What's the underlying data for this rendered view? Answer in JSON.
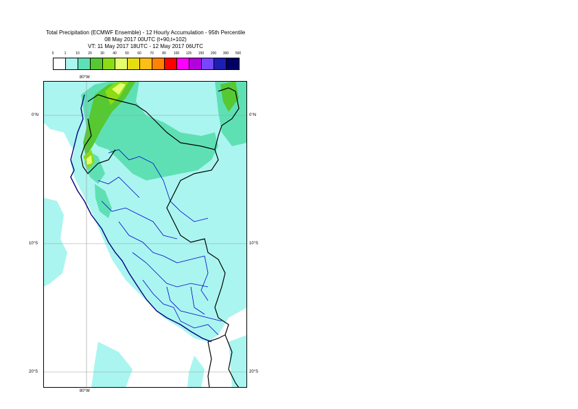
{
  "title": {
    "line1": "Total Precipitation (ECMWF Ensemble) - 12 Hourly Accumulation - 95th Percentile",
    "line2": "08 May 2017 00UTC (t+90,t+102)",
    "line3": "VT: 11 May 2017 18UTC - 12 May 2017 06UTC"
  },
  "legend": {
    "thresholds": [
      "0",
      "1",
      "10",
      "20",
      "30",
      "40",
      "50",
      "60",
      "70",
      "80",
      "100",
      "125",
      "150",
      "200",
      "300",
      "500"
    ],
    "colors": [
      "#ffffff",
      "#aaf5f0",
      "#5fe0b4",
      "#55c832",
      "#8cdc14",
      "#e6ff6e",
      "#e6dc14",
      "#ffbe14",
      "#ff8200",
      "#ff0000",
      "#ff00ff",
      "#b400dc",
      "#7846ff",
      "#1e1eb4",
      "#000064"
    ]
  },
  "axes": {
    "lon_label_top": "80°W",
    "lon_label_bottom": "80°W",
    "lat_labels": [
      "0°N",
      "10°S",
      "20°S"
    ]
  }
}
